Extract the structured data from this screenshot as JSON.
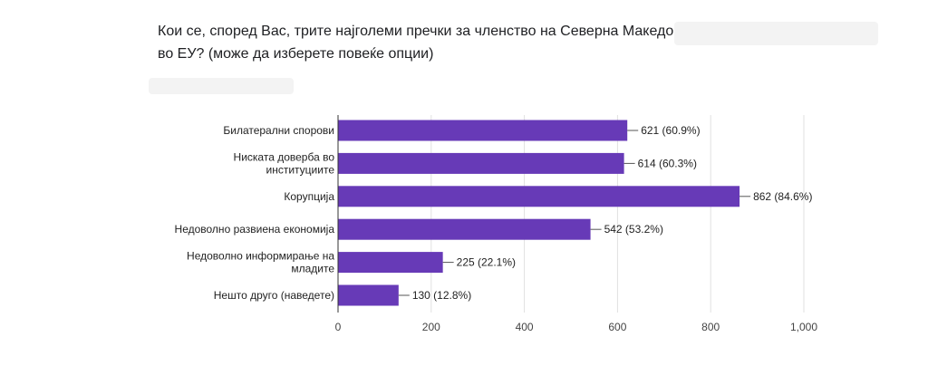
{
  "question": {
    "title": "Кои се, според Вас, трите најголеми пречки за членство на Северна Македонија во ЕУ?  (може да изберете повеќе опции)"
  },
  "colors": {
    "bar": "#673ab7",
    "grid": "#e0e0e0",
    "axis": "#333333"
  },
  "chart_data": {
    "type": "bar",
    "orientation": "horizontal",
    "categories": [
      [
        "Билатерални спорови"
      ],
      [
        "Ниската доверба во",
        "институциите"
      ],
      [
        "Корупција"
      ],
      [
        "Недоволно развиена економија"
      ],
      [
        "Недоволно информирање на",
        "младите"
      ],
      [
        "Нешто друго (наведете)"
      ]
    ],
    "values": [
      621,
      614,
      862,
      542,
      225,
      130
    ],
    "data_labels": [
      "621 (60.9%)",
      "614 (60.3%)",
      "862 (84.6%)",
      "542 (53.2%)",
      "225 (22.1%)",
      "130 (12.8%)"
    ],
    "xlim": [
      0,
      1000
    ],
    "x_ticks": [
      0,
      200,
      400,
      600,
      800,
      1000
    ],
    "x_tick_labels": [
      "0",
      "200",
      "400",
      "600",
      "800",
      "1,000"
    ],
    "grid": true
  }
}
